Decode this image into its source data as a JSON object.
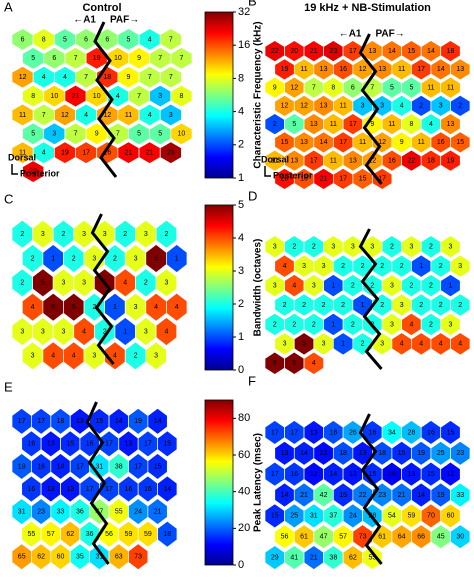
{
  "panels": [
    {
      "letter": "A",
      "title": "Control",
      "left_label": "←A1",
      "right_label": "PAF→",
      "orientation": [
        "Dorsal",
        "Posterior"
      ],
      "scale": 0,
      "cells": [
        6,
        8,
        5,
        6,
        6,
        5,
        4,
        7,
        5,
        6,
        7,
        19,
        10,
        9,
        7,
        7,
        12,
        4,
        4,
        7,
        18,
        9,
        7,
        7,
        8,
        10,
        21,
        10,
        4,
        7,
        3,
        8,
        11,
        7,
        12,
        4,
        12,
        11,
        4,
        3,
        5,
        3,
        7,
        9,
        7,
        5,
        5,
        10,
        11,
        4,
        19,
        17,
        16,
        21,
        21,
        28,
        22
      ]
    },
    {
      "letter": "B",
      "title": "19 kHz + NB-Stimulation",
      "left_label": "←A1",
      "right_label": "PAF→",
      "orientation": [
        "Dorsal",
        "Posterior"
      ],
      "scale": 0,
      "cells": [
        22,
        20,
        21,
        23,
        17,
        13,
        14,
        15,
        14,
        18,
        19,
        11,
        13,
        16,
        12,
        13,
        11,
        17,
        14,
        13,
        9,
        12,
        7,
        8,
        6,
        7,
        5,
        5,
        11,
        11,
        12,
        12,
        13,
        11,
        3,
        3,
        4,
        2,
        3,
        2,
        2,
        5,
        13,
        11,
        17,
        9,
        11,
        8,
        4,
        13,
        15,
        13,
        14,
        17,
        11,
        12,
        9,
        11,
        16,
        15,
        11,
        13,
        17,
        11,
        13,
        12,
        16,
        22,
        18,
        19,
        20,
        16,
        21,
        17,
        15,
        17
      ]
    },
    {
      "letter": "C",
      "scale": 1,
      "cells": [
        2,
        3,
        2,
        3,
        3,
        2,
        3,
        2,
        2,
        1,
        2,
        3,
        2,
        3,
        5,
        1,
        2,
        5,
        3,
        3,
        5,
        4,
        2,
        3,
        4,
        5,
        5,
        2,
        1,
        3,
        4,
        4,
        3,
        3,
        3,
        4,
        2,
        1,
        3,
        4,
        3,
        4,
        4,
        3,
        4,
        2,
        3
      ]
    },
    {
      "letter": "D",
      "scale": 1,
      "cells": [
        3,
        2,
        2,
        3,
        3,
        3,
        2,
        3,
        2,
        3,
        4,
        3,
        3,
        2,
        2,
        2,
        2,
        1,
        2,
        3,
        3,
        4,
        3,
        1,
        2,
        2,
        3,
        2,
        2,
        1,
        2,
        2,
        2,
        2,
        1,
        2,
        3,
        2,
        2,
        2,
        2,
        2,
        2,
        1,
        2,
        2,
        3,
        4,
        2,
        3,
        3,
        5,
        3,
        1,
        2,
        3,
        4,
        4,
        4,
        4,
        5,
        5,
        4
      ]
    },
    {
      "letter": "E",
      "scale": 2,
      "cells": [
        17,
        17,
        18,
        13,
        15,
        14,
        19,
        14,
        16,
        13,
        15,
        16,
        17,
        13,
        17,
        15,
        19,
        16,
        14,
        17,
        31,
        38,
        17,
        15,
        16,
        13,
        13,
        17,
        17,
        16,
        16,
        14,
        31,
        23,
        33,
        36,
        47,
        55,
        24,
        21,
        55,
        57,
        62,
        36,
        56,
        59,
        59,
        18,
        65,
        62,
        60,
        35,
        31,
        63,
        73
      ]
    },
    {
      "letter": "F",
      "scale": 2,
      "cells": [
        17,
        17,
        13,
        18,
        26,
        16,
        34,
        28,
        16,
        15,
        13,
        14,
        12,
        18,
        13,
        18,
        15,
        19,
        25,
        23,
        17,
        16,
        12,
        14,
        13,
        15,
        10,
        13,
        15,
        12,
        14,
        21,
        42,
        15,
        22,
        23,
        21,
        14,
        19,
        33,
        15,
        25,
        31,
        37,
        24,
        28,
        54,
        59,
        70,
        60,
        56,
        61,
        47,
        57,
        73,
        61,
        64,
        66,
        45,
        30,
        29,
        41,
        21,
        38,
        62,
        55
      ]
    }
  ],
  "colorbars": [
    {
      "label": "Characteristic Frequency (kHz)",
      "log": true,
      "lim": [
        1,
        32
      ],
      "ticks": [
        1,
        2,
        4,
        8,
        16,
        32
      ]
    },
    {
      "label": "Bandwidth (octaves)",
      "log": false,
      "lim": [
        0,
        5
      ],
      "ticks": [
        0,
        1,
        2,
        3,
        4,
        5
      ]
    },
    {
      "label": "Peak Latency (msec)",
      "log": false,
      "lim": [
        0,
        90
      ],
      "ticks": [
        0,
        20,
        40,
        60,
        80
      ]
    }
  ]
}
